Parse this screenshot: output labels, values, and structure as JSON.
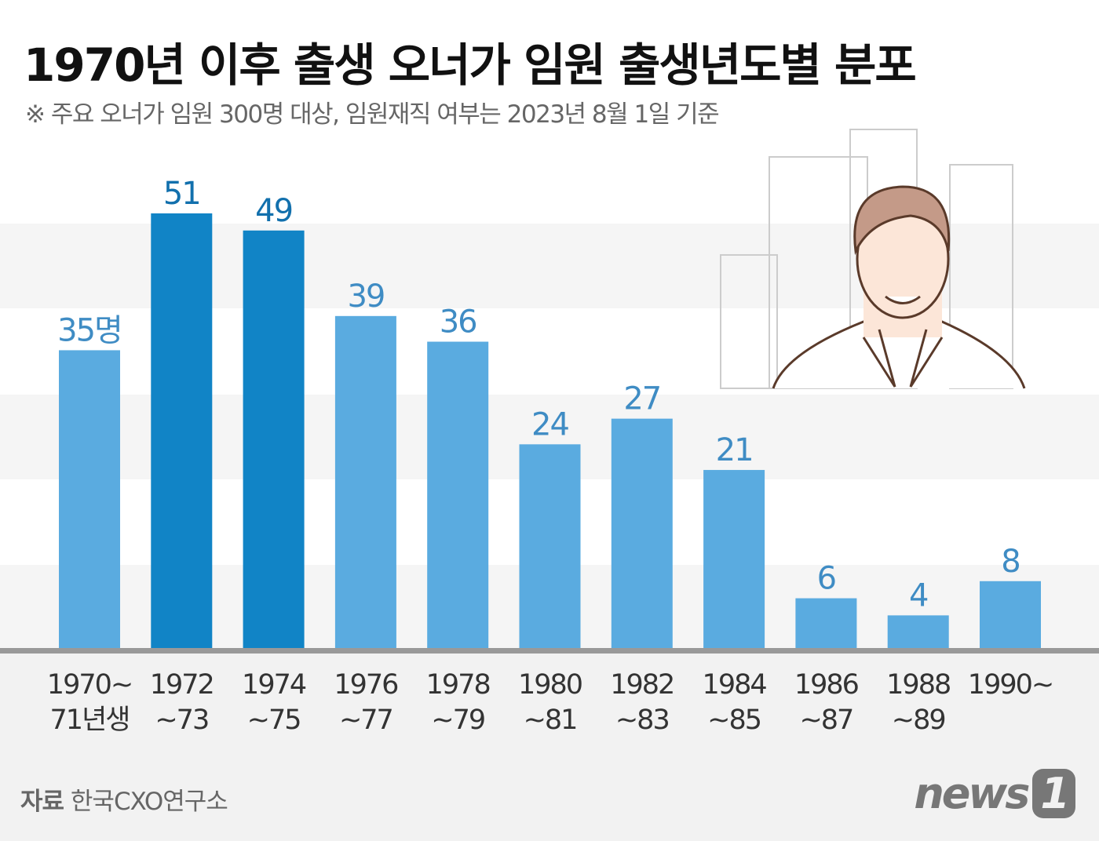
{
  "chart_data": {
    "type": "bar",
    "title": "1970년 이후 출생 오너가 임원 출생년도별 분포",
    "subtitle": "※ 주요 오너가 임원 300명 대상, 임원재직 여부는 2023년 8월 1일 기준",
    "categories": [
      [
        "1970~",
        "71년생"
      ],
      [
        "1972",
        "~73"
      ],
      [
        "1974",
        "~75"
      ],
      [
        "1976",
        "~77"
      ],
      [
        "1978",
        "~79"
      ],
      [
        "1980",
        "~81"
      ],
      [
        "1982",
        "~83"
      ],
      [
        "1984",
        "~85"
      ],
      [
        "1986",
        "~87"
      ],
      [
        "1988",
        "~89"
      ],
      [
        "1990~",
        ""
      ]
    ],
    "values": [
      35,
      51,
      49,
      39,
      36,
      24,
      27,
      21,
      6,
      4,
      8
    ],
    "data_labels": [
      "35명",
      "51",
      "49",
      "39",
      "36",
      "24",
      "27",
      "21",
      "6",
      "4",
      "8"
    ],
    "highlighted": [
      1,
      2
    ],
    "unit": "명",
    "ylim": [
      0,
      51
    ],
    "colors": {
      "bar": "#5aabe0",
      "highlight": "#1184c6",
      "label": "#3f8cc4",
      "highlight_label": "#1270ad"
    }
  },
  "source": {
    "label": "자료",
    "text": "한국CXO연구소"
  },
  "logo": {
    "text": "news",
    "number": "1"
  }
}
